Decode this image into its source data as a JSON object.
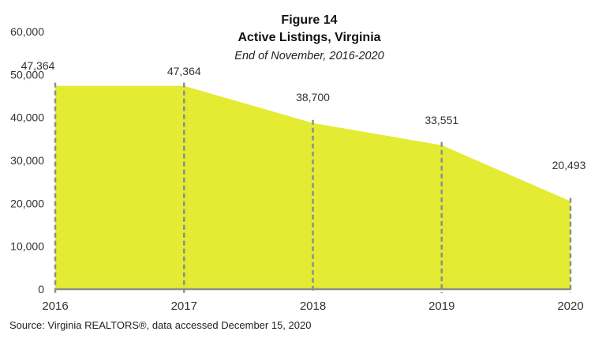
{
  "header": {
    "figure_number": "Figure 14",
    "title": "Active Listings, Virginia",
    "subtitle": "End of November, 2016-2020"
  },
  "footer": {
    "source": "Source: Virginia REALTORS®, data accessed December 15, 2020"
  },
  "colors": {
    "area_fill": "#E3EB33",
    "dashed_line": "#8A8F8A",
    "axis_line": "#8A8F8A",
    "text": "#333333"
  },
  "chart_data": {
    "type": "area",
    "title": "Figure 14 — Active Listings, Virginia",
    "subtitle": "End of November, 2016-2020",
    "categories": [
      "2016",
      "2017",
      "2018",
      "2019",
      "2020"
    ],
    "values": [
      47364,
      47364,
      38700,
      33551,
      20493
    ],
    "data_labels": [
      "47,364",
      "47,364",
      "38,700",
      "33,551",
      "20,493"
    ],
    "xlabel": "",
    "ylabel": "",
    "ylim": [
      0,
      60000
    ],
    "yticks": [
      0,
      10000,
      20000,
      30000,
      40000,
      50000,
      60000
    ],
    "ytick_labels": [
      "0",
      "10,000",
      "20,000",
      "30,000",
      "40,000",
      "50,000",
      "60,000"
    ],
    "grid": false,
    "legend": null,
    "drop_lines": "dashed vertical lines at each category",
    "source": "Source: Virginia REALTORS®, data accessed December 15, 2020"
  }
}
